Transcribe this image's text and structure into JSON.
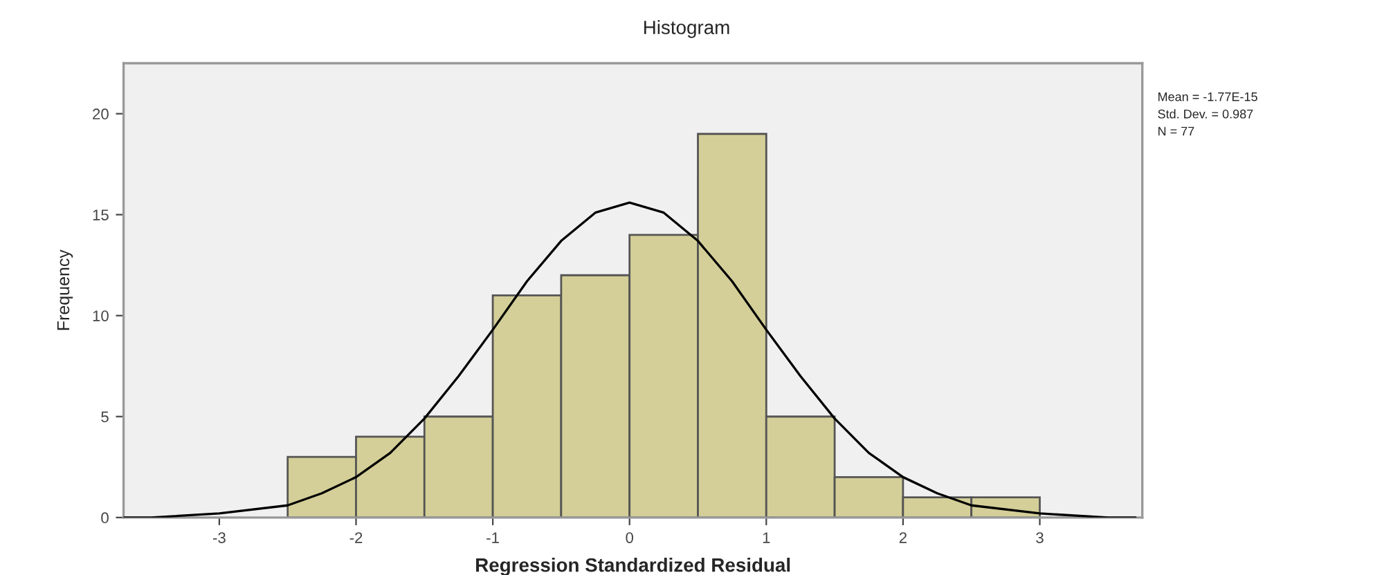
{
  "chart_data": {
    "type": "histogram",
    "title": "Histogram",
    "xlabel": "Regression Standardized Residual",
    "ylabel": "Frequency",
    "bins": [
      -2.5,
      -2.0,
      -1.5,
      -1.0,
      -0.5,
      0.0,
      0.5,
      1.0,
      1.5,
      2.0,
      2.5,
      3.0
    ],
    "values": [
      3,
      4,
      5,
      11,
      12,
      14,
      19,
      5,
      2,
      1,
      1
    ],
    "color": "#d4cf98",
    "series": [
      {
        "type": "line",
        "color": "#000000",
        "x": [
          -3.7,
          -3.5,
          -3.0,
          -2.5,
          -2.25,
          -2.0,
          -1.75,
          -1.5,
          -1.25,
          -1.0,
          -0.75,
          -0.5,
          -0.25,
          0.0,
          0.25,
          0.5,
          0.75,
          1.0,
          1.25,
          1.5,
          1.75,
          2.0,
          2.25,
          2.5,
          3.0,
          3.5,
          3.7
        ],
        "values": [
          0.0,
          0.0,
          0.2,
          0.6,
          1.2,
          2.0,
          3.2,
          4.9,
          7.0,
          9.3,
          11.7,
          13.7,
          15.1,
          15.6,
          15.1,
          13.7,
          11.7,
          9.3,
          7.0,
          4.9,
          3.2,
          2.0,
          1.2,
          0.6,
          0.2,
          0.0,
          0.0
        ]
      }
    ],
    "xlim": [
      -3.7,
      3.75
    ],
    "ylim": [
      0,
      22.5
    ],
    "xticks": [
      -3,
      -2,
      -1,
      0,
      1,
      2,
      3
    ],
    "yticks": [
      0,
      5,
      10,
      15,
      20
    ],
    "grid": false,
    "annotations": [
      "Mean = -1.77E-15",
      "Std. Dev. = 0.987",
      "N = 77"
    ]
  }
}
